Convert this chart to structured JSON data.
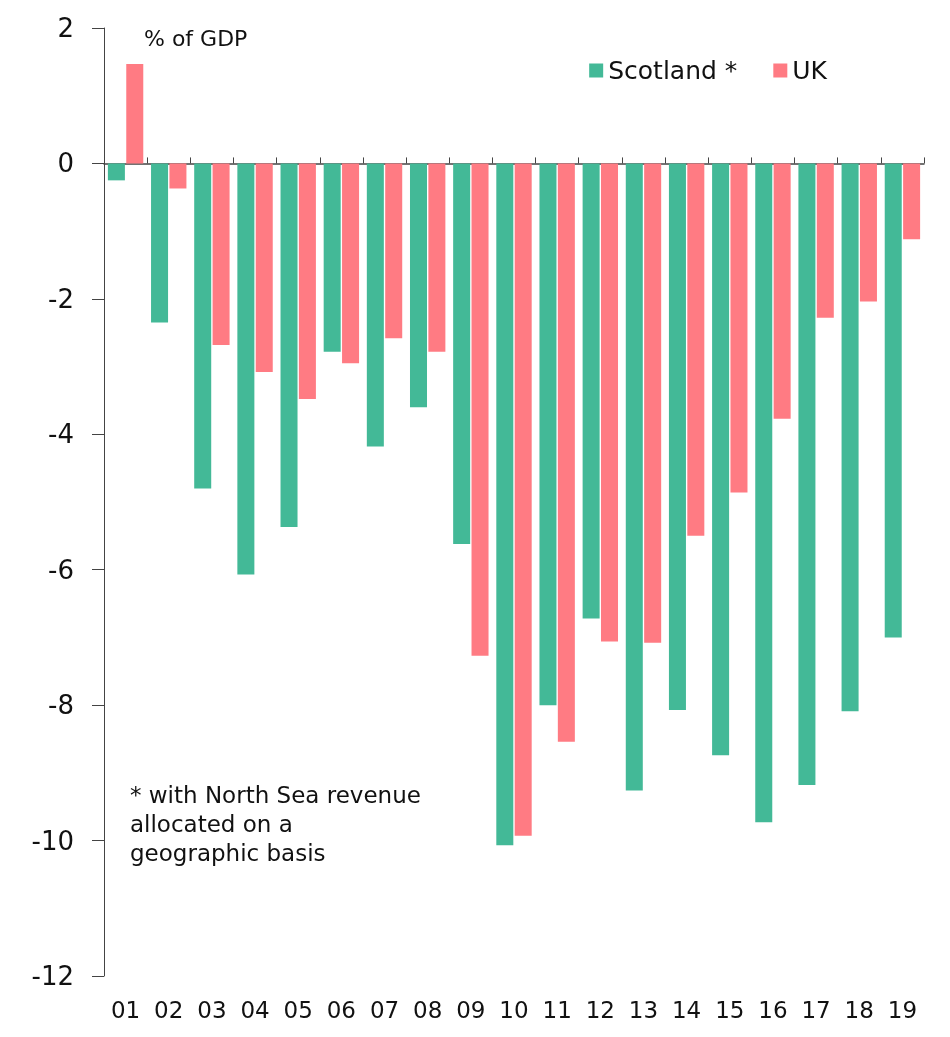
{
  "chart_data": {
    "type": "bar",
    "ylabel": "% of GDP",
    "categories": [
      "01",
      "02",
      "03",
      "04",
      "05",
      "06",
      "07",
      "08",
      "09",
      "10",
      "11",
      "12",
      "13",
      "14",
      "15",
      "16",
      "17",
      "18",
      "19"
    ],
    "series": [
      {
        "name": "Scotland *",
        "color": "#43b997",
        "values": [
          -0.25,
          -2.35,
          -4.8,
          -6.07,
          -5.37,
          -2.78,
          -4.18,
          -3.6,
          -5.62,
          -10.07,
          -8.0,
          -6.72,
          -9.26,
          -8.07,
          -8.74,
          -9.73,
          -9.18,
          -8.09,
          -7.0
        ]
      },
      {
        "name": "UK",
        "color": "#ff7b83",
        "values": [
          1.47,
          -0.37,
          -2.68,
          -3.08,
          -3.48,
          -2.95,
          -2.58,
          -2.78,
          -7.27,
          -9.93,
          -8.54,
          -7.06,
          -7.08,
          -5.5,
          -4.86,
          -3.77,
          -2.28,
          -2.04,
          -1.12
        ]
      }
    ],
    "ylim": [
      -12,
      2
    ],
    "yticks": [
      -12,
      -10,
      -8,
      -6,
      -4,
      -2,
      0,
      2
    ],
    "legend": "top right",
    "annotations": [
      "* with North Sea revenue allocated on a geographic basis"
    ]
  }
}
